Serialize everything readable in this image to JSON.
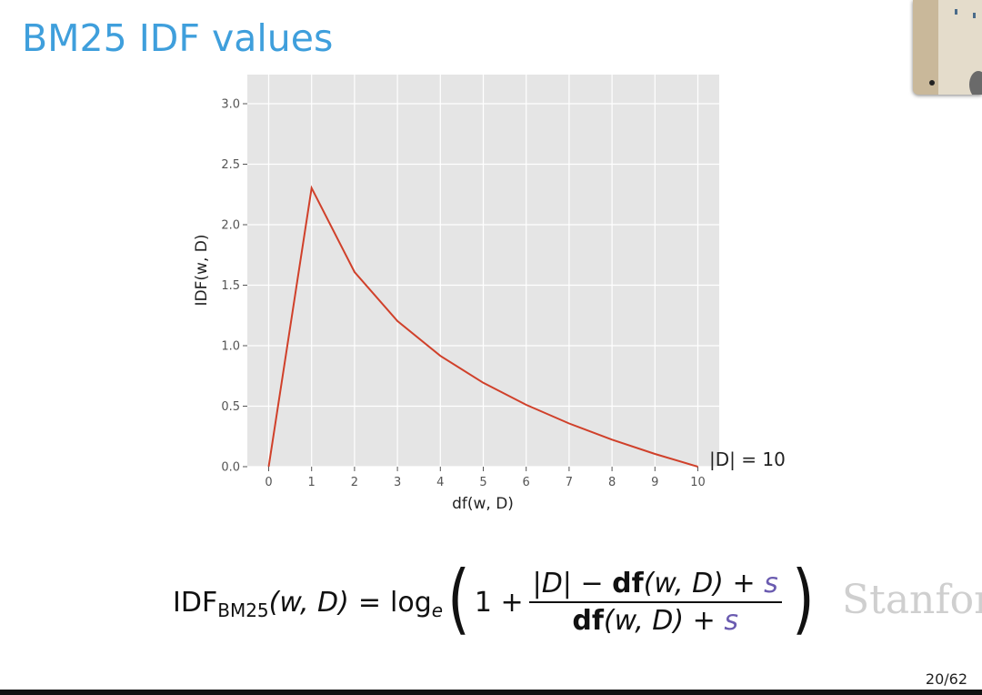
{
  "slide": {
    "title": "BM25 IDF values",
    "page_number": "20/62",
    "watermark": "Stanfor"
  },
  "chart_data": {
    "type": "line",
    "xlabel": "df(w, D)",
    "ylabel": "IDF(w, D)",
    "xlim": [
      0,
      10
    ],
    "ylim": [
      0,
      3
    ],
    "x_ticks": [
      "0",
      "1",
      "2",
      "3",
      "4",
      "5",
      "6",
      "7",
      "8",
      "9",
      "10"
    ],
    "y_ticks": [
      "0.0",
      "0.5",
      "1.0",
      "1.5",
      "2.0",
      "2.5",
      "3.0"
    ],
    "grid": true,
    "background": "#e5e5e5",
    "line_color": "#d0402a",
    "annotation": "|D| = 10",
    "series": [
      {
        "x": [
          0,
          1,
          2,
          3,
          4,
          5,
          6,
          7,
          8,
          9,
          10
        ],
        "values": [
          0,
          2.303,
          1.609,
          1.204,
          0.916,
          0.693,
          0.511,
          0.357,
          0.223,
          0.105,
          0
        ]
      }
    ]
  },
  "formula": {
    "lhs_name": "IDF",
    "lhs_sub": "BM25",
    "lhs_args": "(w, D)",
    "equals": "=",
    "log": "log",
    "log_sub": "e",
    "one_plus": "1 +",
    "num_abs_d": "|D|",
    "minus": "−",
    "df": "df",
    "df_args": "(w, D)",
    "plus": "+",
    "s": "s"
  }
}
